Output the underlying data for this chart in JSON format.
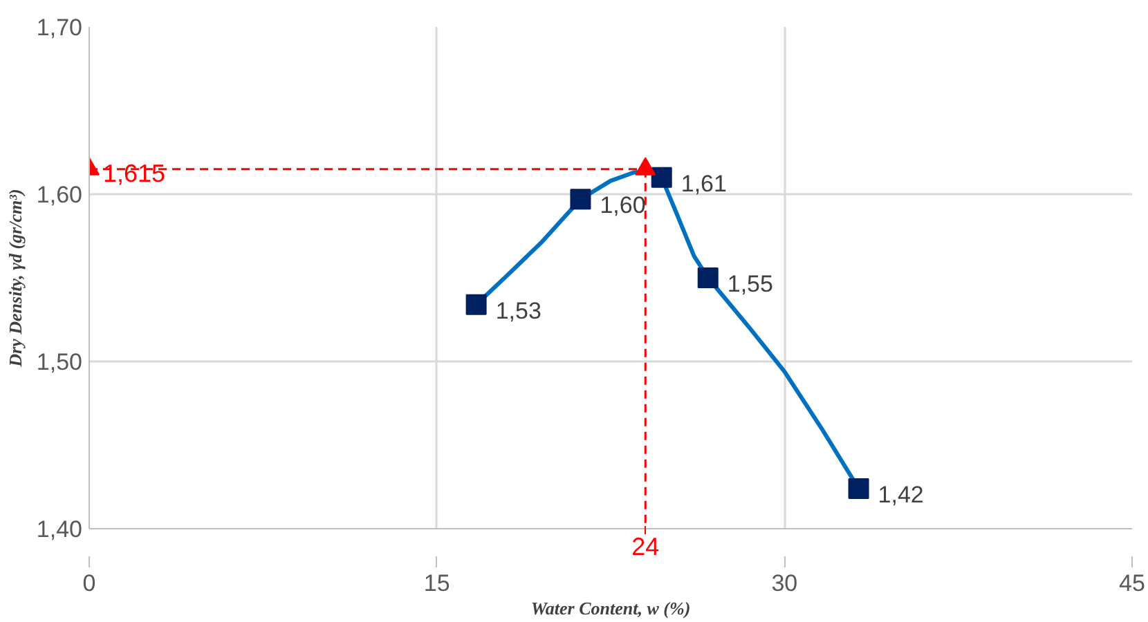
{
  "chart_data": {
    "type": "scatter",
    "xlabel": "Water Content, w (%)",
    "ylabel": "Dry Density, γd (gr/cm³)",
    "xlim": [
      0,
      45
    ],
    "xticks": [
      0,
      15,
      30,
      45
    ],
    "ylim": [
      1.4,
      1.7
    ],
    "yticks": [
      {
        "value": 1.4,
        "label": "1,40"
      },
      {
        "value": 1.5,
        "label": "1,50"
      },
      {
        "value": 1.6,
        "label": "1,60"
      },
      {
        "value": 1.7,
        "label": "1,70"
      }
    ],
    "grid": true,
    "series": [
      {
        "type": "line",
        "color": "#0070c0",
        "marker": "none",
        "line_style": "solid",
        "x": [
          16.7,
          18.0,
          19.5,
          21.2,
          22.5,
          23.5,
          24.3,
          24.7,
          25.3,
          26.1,
          26.7,
          28.5,
          30.0,
          31.6,
          33.2
        ],
        "values": [
          1.534,
          1.551,
          1.571,
          1.597,
          1.608,
          1.613,
          1.614,
          1.61,
          1.59,
          1.563,
          1.55,
          1.52,
          1.494,
          1.46,
          1.424
        ]
      },
      {
        "color": "#002060",
        "marker": "square",
        "x": [
          16.7,
          21.2,
          24.7,
          26.7,
          33.2
        ],
        "values": [
          1.534,
          1.597,
          1.61,
          1.55,
          1.424
        ],
        "value_labels": [
          "1,53",
          "1,60",
          "1,61",
          "1,55",
          "1,42"
        ]
      },
      {
        "type": "line",
        "color": "#ff0000",
        "marker": "triangle",
        "line_style": "dashed",
        "x": [
          0,
          24
        ],
        "values": [
          1.615,
          1.615
        ]
      },
      {
        "type": "line",
        "color": "#ff0000",
        "marker": "none",
        "line_style": "dashed",
        "x": [
          24,
          24
        ],
        "values": [
          1.615,
          1.4
        ]
      }
    ],
    "annotations": [
      {
        "text": "1,615",
        "x": 0,
        "y": 1.615
      },
      {
        "text": "24",
        "x": 24,
        "y": 1.4
      }
    ]
  }
}
